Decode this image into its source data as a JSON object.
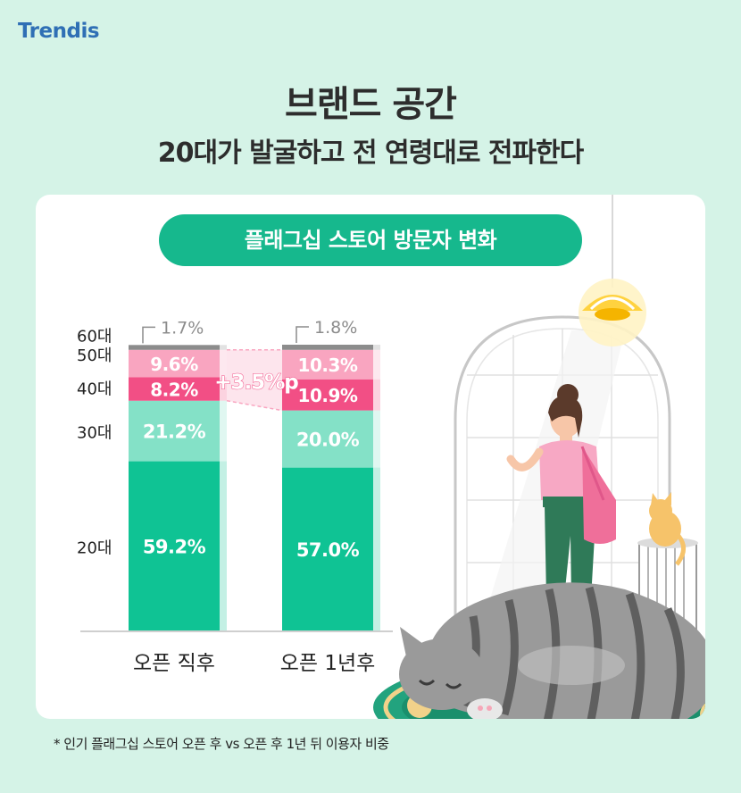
{
  "brand": {
    "logo_text": "Trendis"
  },
  "headline": {
    "line1": "브랜드 공간",
    "line2": "20대가 발굴하고 전 연령대로 전파한다"
  },
  "chart_title": "플래그십  스토어 방문자 변화",
  "footnote": "* 인기 플래그십 스토어 오픈 후 vs 오픈 후 1년 뒤 이용자 비중",
  "colors": {
    "s20": "#0fc394",
    "s30": "#84e1c7",
    "s40": "#f24f85",
    "s50": "#f9a5c0",
    "s60": "#8c8c8c"
  },
  "chart_data": {
    "type": "bar",
    "stacked": true,
    "categories": [
      "오픈 직후",
      "오픈 1년후"
    ],
    "series": [
      {
        "name": "20대",
        "values": [
          59.2,
          57.0
        ],
        "labels": [
          "59.2%",
          "57.0%"
        ]
      },
      {
        "name": "30대",
        "values": [
          21.2,
          20.0
        ],
        "labels": [
          "21.2%",
          "20.0%"
        ]
      },
      {
        "name": "40대",
        "values": [
          8.2,
          10.9
        ],
        "labels": [
          "8.2%",
          "10.9%"
        ]
      },
      {
        "name": "50대",
        "values": [
          9.6,
          10.3
        ],
        "labels": [
          "9.6%",
          "10.3%"
        ]
      },
      {
        "name": "60대",
        "values": [
          1.7,
          1.8
        ],
        "labels": [
          "1.7%",
          "1.8%"
        ]
      }
    ],
    "annotation": "+3.5%p",
    "ylim": [
      0,
      100
    ],
    "grid": false,
    "legend": "left"
  }
}
